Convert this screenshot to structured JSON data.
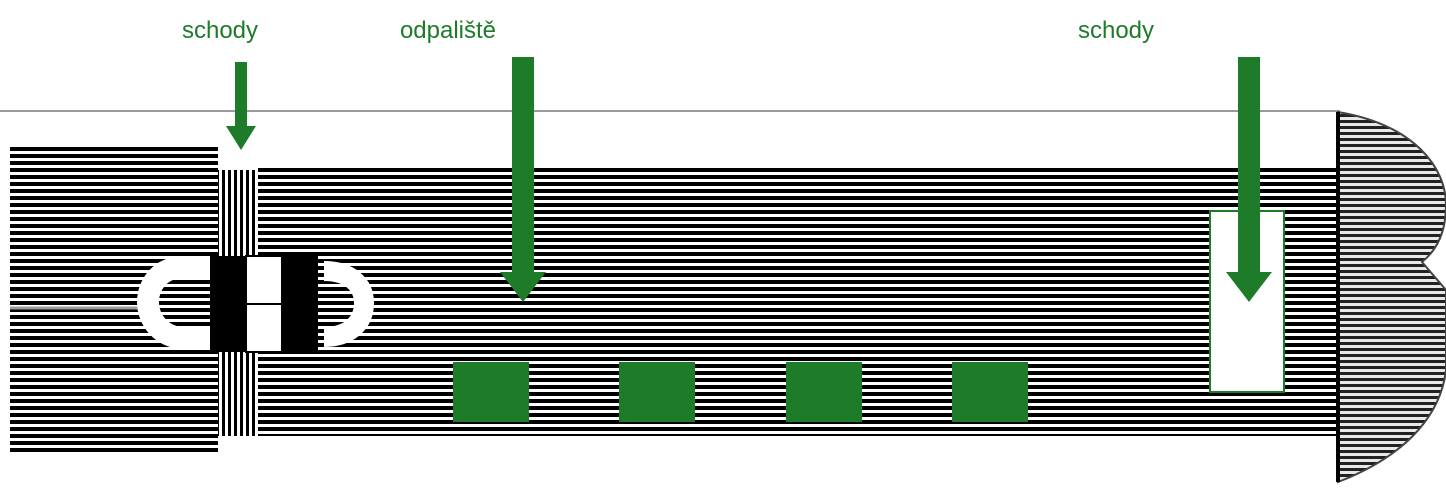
{
  "labels": {
    "stairs_left": "schody",
    "tee_area": "odpaliště",
    "stairs_right": "schody"
  },
  "colors": {
    "accent": "#1e7b29",
    "stripe_dark": "#000000",
    "stripe_light": "#ffffff",
    "line_gray": "#9a9a9a",
    "grid_gray": "#666666"
  },
  "icons": [
    "arrow-down-icon",
    "semicircle-icon"
  ],
  "tee_markers": {
    "count": 4
  }
}
